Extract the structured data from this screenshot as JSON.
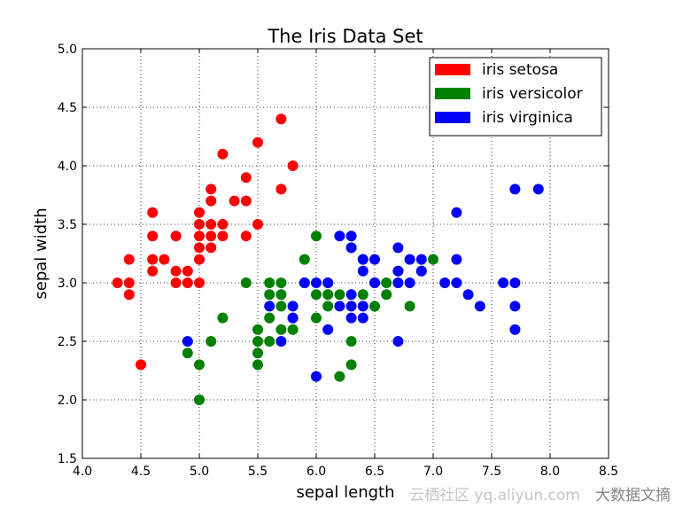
{
  "chart_data": {
    "type": "scatter",
    "title": "The Iris Data Set",
    "xlabel": "sepal length",
    "ylabel": "sepal width",
    "xlim": [
      4.0,
      8.5
    ],
    "ylim": [
      1.5,
      5.0
    ],
    "xticks": [
      "4.0",
      "4.5",
      "5.0",
      "5.5",
      "6.0",
      "6.5",
      "7.0",
      "7.5",
      "8.0",
      "8.5"
    ],
    "yticks": [
      "1.5",
      "2.0",
      "2.5",
      "3.0",
      "3.5",
      "4.0",
      "4.5",
      "5.0"
    ],
    "grid": true,
    "legend_position": "top-right",
    "series": [
      {
        "name": "iris setosa",
        "color": "#ff0000",
        "points": [
          [
            5.1,
            3.5
          ],
          [
            4.9,
            3.0
          ],
          [
            4.7,
            3.2
          ],
          [
            4.6,
            3.1
          ],
          [
            5.0,
            3.6
          ],
          [
            5.4,
            3.9
          ],
          [
            4.6,
            3.4
          ],
          [
            5.0,
            3.4
          ],
          [
            4.4,
            2.9
          ],
          [
            4.9,
            3.1
          ],
          [
            5.4,
            3.7
          ],
          [
            4.8,
            3.4
          ],
          [
            4.8,
            3.0
          ],
          [
            4.3,
            3.0
          ],
          [
            5.8,
            4.0
          ],
          [
            5.7,
            4.4
          ],
          [
            5.7,
            3.8
          ],
          [
            5.1,
            3.8
          ],
          [
            5.4,
            3.4
          ],
          [
            5.1,
            3.7
          ],
          [
            4.6,
            3.6
          ],
          [
            5.1,
            3.3
          ],
          [
            5.0,
            3.0
          ],
          [
            5.2,
            3.5
          ],
          [
            5.2,
            3.4
          ],
          [
            4.8,
            3.1
          ],
          [
            5.2,
            4.1
          ],
          [
            5.5,
            4.2
          ],
          [
            5.0,
            3.2
          ],
          [
            5.5,
            3.5
          ],
          [
            4.4,
            3.0
          ],
          [
            5.1,
            3.4
          ],
          [
            5.0,
            3.5
          ],
          [
            4.5,
            2.3
          ],
          [
            4.4,
            3.2
          ],
          [
            4.6,
            3.2
          ],
          [
            5.3,
            3.7
          ],
          [
            5.0,
            3.3
          ]
        ]
      },
      {
        "name": "iris versicolor",
        "color": "#008000",
        "points": [
          [
            7.0,
            3.2
          ],
          [
            6.4,
            3.2
          ],
          [
            6.9,
            3.1
          ],
          [
            5.5,
            2.3
          ],
          [
            6.5,
            2.8
          ],
          [
            5.7,
            2.8
          ],
          [
            6.3,
            3.3
          ],
          [
            4.9,
            2.4
          ],
          [
            6.6,
            2.9
          ],
          [
            5.2,
            2.7
          ],
          [
            5.0,
            2.0
          ],
          [
            5.9,
            3.0
          ],
          [
            6.0,
            2.2
          ],
          [
            6.1,
            2.9
          ],
          [
            5.6,
            2.9
          ],
          [
            6.7,
            3.1
          ],
          [
            5.6,
            3.0
          ],
          [
            5.8,
            2.7
          ],
          [
            6.2,
            2.2
          ],
          [
            5.6,
            2.5
          ],
          [
            5.9,
            3.2
          ],
          [
            6.1,
            2.8
          ],
          [
            6.3,
            2.5
          ],
          [
            6.4,
            2.9
          ],
          [
            6.6,
            3.0
          ],
          [
            6.8,
            2.8
          ],
          [
            6.7,
            3.0
          ],
          [
            6.0,
            2.9
          ],
          [
            5.7,
            2.6
          ],
          [
            5.5,
            2.4
          ],
          [
            6.0,
            2.7
          ],
          [
            5.4,
            3.0
          ],
          [
            6.0,
            3.4
          ],
          [
            6.3,
            2.3
          ],
          [
            5.5,
            2.5
          ],
          [
            5.5,
            2.6
          ],
          [
            6.1,
            3.0
          ],
          [
            5.8,
            2.6
          ],
          [
            5.0,
            2.3
          ],
          [
            5.6,
            2.7
          ],
          [
            5.7,
            3.0
          ],
          [
            5.7,
            2.9
          ],
          [
            6.2,
            2.9
          ],
          [
            5.1,
            2.5
          ]
        ]
      },
      {
        "name": "iris virginica",
        "color": "#0000ff",
        "points": [
          [
            6.3,
            3.3
          ],
          [
            5.8,
            2.7
          ],
          [
            7.1,
            3.0
          ],
          [
            6.3,
            2.9
          ],
          [
            6.5,
            3.0
          ],
          [
            7.6,
            3.0
          ],
          [
            4.9,
            2.5
          ],
          [
            7.3,
            2.9
          ],
          [
            6.7,
            2.5
          ],
          [
            7.2,
            3.6
          ],
          [
            6.5,
            3.2
          ],
          [
            6.4,
            2.7
          ],
          [
            6.8,
            3.0
          ],
          [
            5.7,
            2.5
          ],
          [
            5.8,
            2.8
          ],
          [
            6.4,
            3.2
          ],
          [
            7.7,
            3.8
          ],
          [
            7.7,
            2.6
          ],
          [
            6.0,
            2.2
          ],
          [
            6.9,
            3.2
          ],
          [
            5.6,
            2.8
          ],
          [
            7.7,
            2.8
          ],
          [
            6.3,
            2.7
          ],
          [
            6.7,
            3.3
          ],
          [
            7.2,
            3.2
          ],
          [
            6.2,
            2.8
          ],
          [
            6.1,
            3.0
          ],
          [
            6.4,
            2.8
          ],
          [
            7.2,
            3.0
          ],
          [
            7.4,
            2.8
          ],
          [
            7.9,
            3.8
          ],
          [
            6.3,
            2.8
          ],
          [
            6.1,
            2.6
          ],
          [
            7.7,
            3.0
          ],
          [
            6.3,
            3.4
          ],
          [
            6.4,
            3.1
          ],
          [
            6.0,
            3.0
          ],
          [
            6.9,
            3.1
          ],
          [
            6.7,
            3.1
          ],
          [
            6.8,
            3.2
          ],
          [
            6.7,
            3.0
          ],
          [
            6.5,
            3.0
          ],
          [
            6.2,
            3.4
          ],
          [
            5.9,
            3.0
          ]
        ]
      }
    ]
  },
  "watermark": {
    "left": "云栖社区 yq.aliyun.com",
    "right": "大数据文摘"
  }
}
